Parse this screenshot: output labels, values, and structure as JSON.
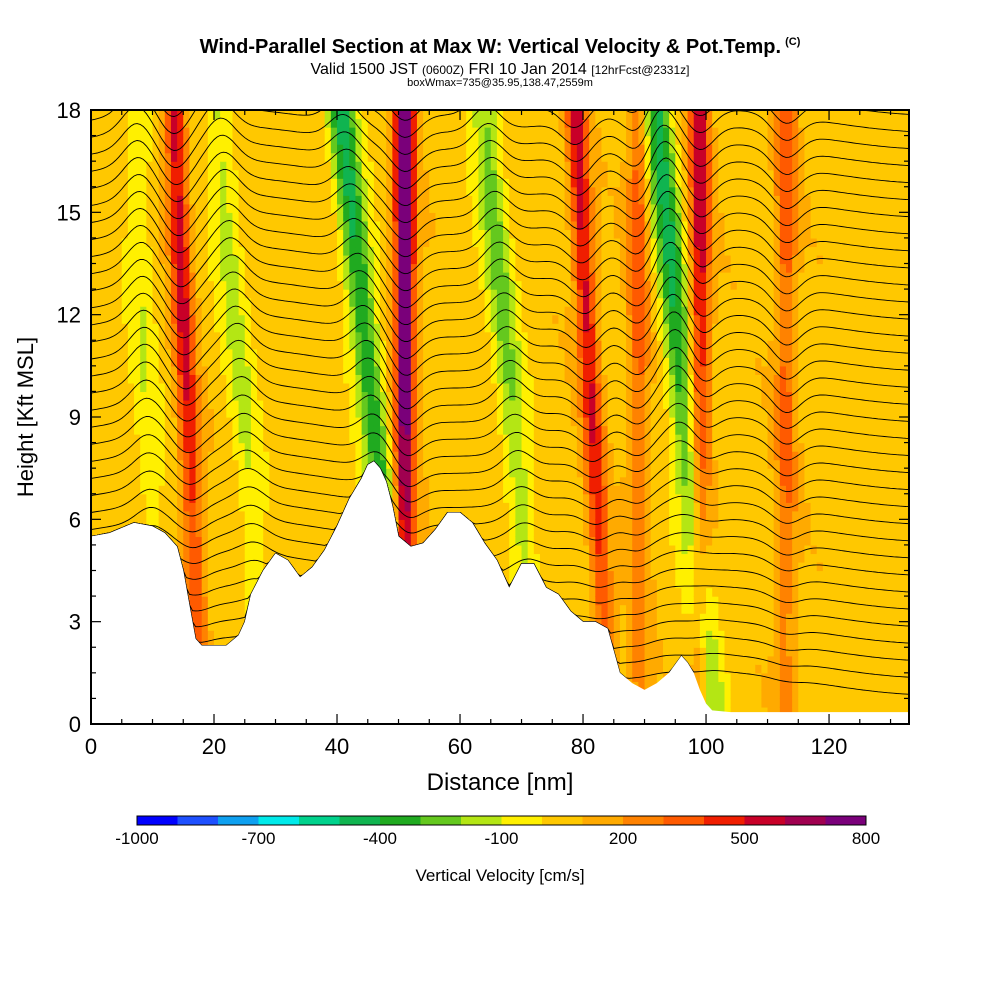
{
  "header": {
    "title": "Wind-Parallel Section at Max W: Vertical Velocity & Pot.Temp.",
    "copyright": "(C)",
    "valid_prefix": "Valid 1500 JST",
    "valid_utc": "(0600Z)",
    "valid_date": "FRI 10 Jan 2014",
    "forecast": "[12hrFcst@2331z]",
    "box_info": "boxWmax=735@35.95,138.47,2559m"
  },
  "chart_data": {
    "type": "heatmap",
    "xlabel": "Distance [nm]",
    "ylabel": "Height [Kft MSL]",
    "xlim": [
      0,
      133
    ],
    "ylim": [
      0,
      18
    ],
    "x_ticks": [
      0,
      20,
      40,
      60,
      80,
      100,
      120
    ],
    "y_ticks": [
      0,
      3,
      6,
      9,
      12,
      15,
      18
    ],
    "grid": false,
    "colorbar": {
      "label": "Vertical Velocity [cm/s]",
      "placement": "bottom",
      "tick_labels": [
        "-1000",
        "-700",
        "-400",
        "-100",
        "200",
        "500",
        "800"
      ],
      "tick_values": [
        -1000,
        -700,
        -400,
        -100,
        200,
        500,
        800
      ],
      "levels": [
        -1000,
        -900,
        -800,
        -700,
        -600,
        -500,
        -400,
        -300,
        -200,
        -100,
        0,
        100,
        200,
        300,
        400,
        500,
        600,
        700,
        800
      ],
      "colors": [
        "#0000ff",
        "#1e50ff",
        "#0ea0f0",
        "#00eaea",
        "#00d28c",
        "#10b450",
        "#20aa20",
        "#64c81e",
        "#b4e614",
        "#fff000",
        "#ffc800",
        "#ffaa00",
        "#ff8200",
        "#ff5a00",
        "#f01e00",
        "#c80028",
        "#a00050",
        "#7a007a"
      ]
    },
    "contour_field": "Potential temperature (K)",
    "terrain_profile": {
      "x": [
        0,
        3,
        7,
        10,
        12,
        14,
        15,
        16,
        17,
        18,
        19,
        22,
        24,
        25,
        26,
        28,
        30,
        32,
        34,
        36,
        38,
        40,
        42,
        44,
        45,
        46,
        47,
        48,
        49,
        50,
        52,
        54,
        56,
        58,
        60,
        62,
        64,
        66,
        68,
        70,
        72,
        74,
        76,
        78,
        80,
        82,
        84,
        86,
        88,
        90,
        92,
        94,
        96,
        97,
        98,
        99,
        100,
        101,
        104,
        110,
        115,
        120,
        125,
        130,
        133
      ],
      "height_kft": [
        5.5,
        5.6,
        5.9,
        5.8,
        5.6,
        5.2,
        4.5,
        3.5,
        2.5,
        2.3,
        2.3,
        2.3,
        2.6,
        3.0,
        3.8,
        4.5,
        5.0,
        4.8,
        4.3,
        4.6,
        5.1,
        5.8,
        6.6,
        7.2,
        7.6,
        7.7,
        7.5,
        7.1,
        6.4,
        5.5,
        5.2,
        5.3,
        5.7,
        6.2,
        6.2,
        5.9,
        5.3,
        4.8,
        4.0,
        4.7,
        4.7,
        4.0,
        3.8,
        3.3,
        3.0,
        3.0,
        2.8,
        1.5,
        1.2,
        1.0,
        1.2,
        1.5,
        2.0,
        1.8,
        1.5,
        1.0,
        0.6,
        0.4,
        0.35,
        0.35,
        0.35,
        0.35,
        0.35,
        0.35,
        0.35
      ]
    },
    "updraft_bands": [
      {
        "x_at_surface": 17,
        "tilt_nm_per_kft": -0.25,
        "w_cms": 500
      },
      {
        "x_at_surface": 51,
        "tilt_nm_per_kft": 0.0,
        "w_cms": 800
      },
      {
        "x_at_surface": 83,
        "tilt_nm_per_kft": -0.3,
        "w_cms": 500
      },
      {
        "x_at_surface": 99,
        "tilt_nm_per_kft": 0.0,
        "w_cms": 500
      },
      {
        "x_at_surface": 113,
        "tilt_nm_per_kft": 0.0,
        "w_cms": 300
      },
      {
        "x_at_surface": 89,
        "tilt_nm_per_kft": 0.0,
        "w_cms": 300
      }
    ],
    "downdraft_bands": [
      {
        "x_at_surface": 27,
        "tilt_nm_per_kft": -0.45,
        "w_cms": -200
      },
      {
        "x_at_surface": 49,
        "tilt_nm_per_kft": -0.6,
        "w_cms": -500
      },
      {
        "x_at_surface": 71,
        "tilt_nm_per_kft": -0.5,
        "w_cms": -300
      },
      {
        "x_at_surface": 99,
        "tilt_nm_per_kft": -0.5,
        "w_cms": -500
      },
      {
        "x_at_surface": 10,
        "tilt_nm_per_kft": -0.2,
        "w_cms": -150
      }
    ]
  }
}
